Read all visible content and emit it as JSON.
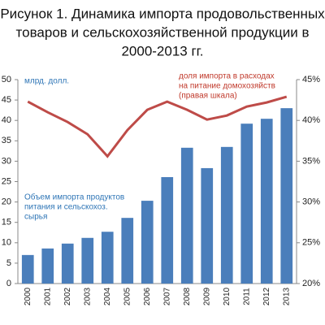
{
  "chart_data": {
    "type": "bar_line",
    "title": [
      "Рисунок 1. Динамика импорта продовольственных",
      "товаров и сельскохозяйственной продукции в",
      "2000-2013 гг."
    ],
    "annotations": [
      {
        "lines": [
          "млрд. долл."
        ],
        "color": "#2e75b6"
      },
      {
        "lines": [
          "доля импорта в расходах",
          "на питание домохозяйств",
          "(правая шкала)"
        ],
        "color": "#c0392b"
      },
      {
        "lines": [
          "Объем импорта продуктов",
          "питания и сельскохоз.",
          "сырья"
        ],
        "color": "#2e75b6"
      }
    ],
    "categories": [
      "2000",
      "2001",
      "2002",
      "2003",
      "2004",
      "2005",
      "2006",
      "2007",
      "2008",
      "2009",
      "2010",
      "2011",
      "2012",
      "2013"
    ],
    "series": [
      {
        "name": "Объем импорта продуктов питания и сельскохоз. сырья",
        "color": "#4a7ebb",
        "kind": "bar",
        "values": [
          7,
          8.6,
          9.8,
          11.2,
          12.7,
          16.1,
          20.3,
          26.1,
          33.3,
          28.3,
          33.5,
          39.2,
          40.4,
          43.0
        ]
      },
      {
        "name": "доля импорта в расходах на питание домохозяйств (правая шкала)",
        "color": "#be4b48",
        "kind": "line",
        "axis": "y2",
        "values": [
          42.3,
          41.0,
          39.8,
          38.3,
          35.6,
          38.8,
          41.3,
          42.3,
          41.3,
          40.1,
          40.6,
          41.7,
          42.2,
          42.9
        ]
      }
    ],
    "ylim": [
      0,
      50
    ],
    "yticks": [
      0,
      5,
      10,
      15,
      20,
      25,
      30,
      35,
      40,
      45,
      50
    ],
    "y2lim": [
      20,
      45
    ],
    "y2ticks": [
      {
        "value": 20,
        "label": "20%"
      },
      {
        "value": 25,
        "label": "25%"
      },
      {
        "value": 30,
        "label": "30%"
      },
      {
        "value": 35,
        "label": "35%"
      },
      {
        "value": 40,
        "label": "40%"
      },
      {
        "value": 45,
        "label": "45%"
      }
    ]
  }
}
